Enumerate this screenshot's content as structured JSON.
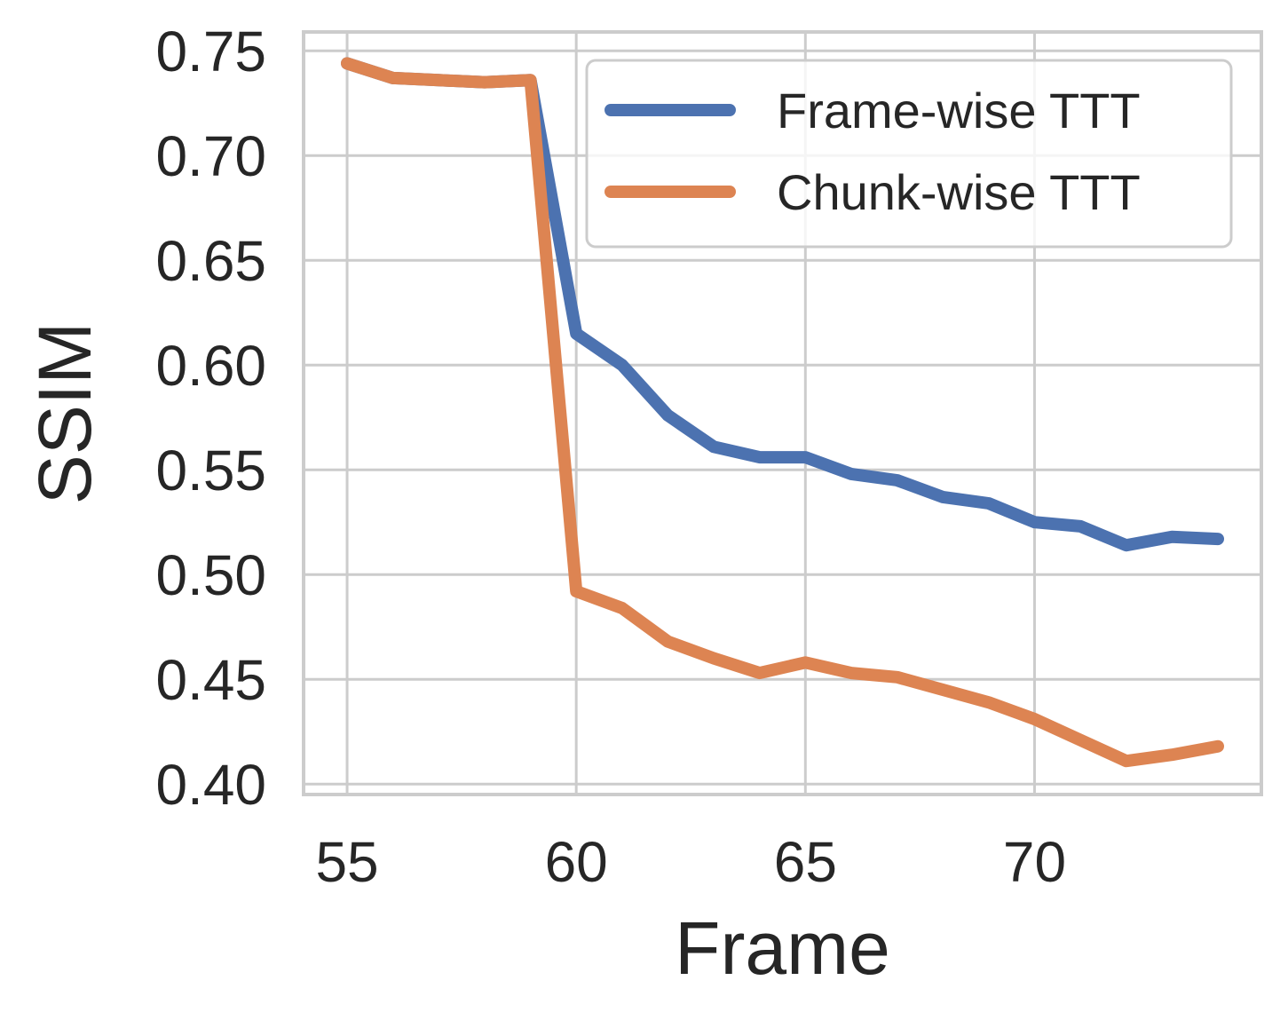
{
  "chart_data": {
    "type": "line",
    "xlabel": "Frame",
    "ylabel": "SSIM",
    "xlim": [
      54.05,
      74.95
    ],
    "ylim": [
      0.395,
      0.759
    ],
    "xticks": [
      55,
      60,
      65,
      70
    ],
    "yticks": [
      0.4,
      0.45,
      0.5,
      0.55,
      0.6,
      0.65,
      0.7,
      0.75
    ],
    "grid": true,
    "legend_position": "top-right",
    "x": [
      55,
      56,
      57,
      58,
      59,
      60,
      61,
      62,
      63,
      64,
      65,
      66,
      67,
      68,
      69,
      70,
      71,
      72,
      73,
      74
    ],
    "series": [
      {
        "name": "Frame-wise TTT",
        "color": "#4c72b0",
        "values": [
          0.744,
          0.737,
          0.736,
          0.735,
          0.736,
          0.615,
          0.6,
          0.576,
          0.561,
          0.556,
          0.556,
          0.548,
          0.545,
          0.537,
          0.534,
          0.525,
          0.523,
          0.514,
          0.518,
          0.517
        ]
      },
      {
        "name": "Chunk-wise TTT",
        "color": "#dd8452",
        "values": [
          0.744,
          0.737,
          0.736,
          0.735,
          0.736,
          0.492,
          0.484,
          0.468,
          0.46,
          0.453,
          0.458,
          0.453,
          0.451,
          0.445,
          0.439,
          0.431,
          0.421,
          0.411,
          0.414,
          0.418
        ]
      }
    ]
  }
}
